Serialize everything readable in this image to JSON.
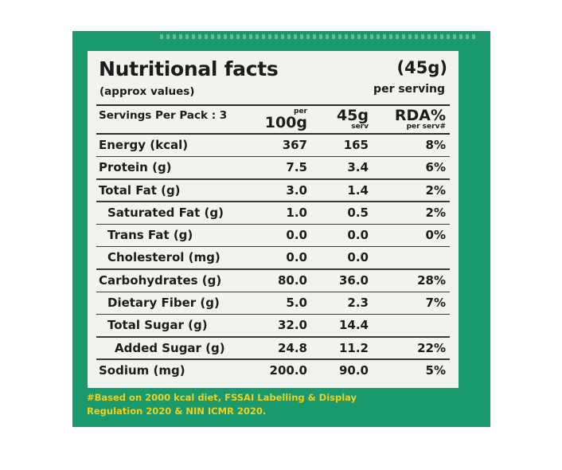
{
  "label": {
    "title": "Nutritional facts",
    "subtitle": "(approx values)",
    "serving_size": "(45g)",
    "serving_caption": "per serving",
    "servings_per_pack": "Servings Per Pack : 3",
    "headers": {
      "per100_small": "per",
      "per100_big": "100g",
      "per45_big": "45g",
      "per45_small": "serv",
      "rda_big": "RDA%",
      "rda_small": "per serv#"
    },
    "rows": [
      {
        "name": "Energy (kcal)",
        "indent": 0,
        "per100": "367",
        "per45": "165",
        "rda": "8%"
      },
      {
        "name": "Protein (g)",
        "indent": 0,
        "per100": "7.5",
        "per45": "3.4",
        "rda": "6%"
      },
      {
        "name": "Total Fat (g)",
        "indent": 0,
        "per100": "3.0",
        "per45": "1.4",
        "rda": "2%"
      },
      {
        "name": "Saturated Fat (g)",
        "indent": 1,
        "per100": "1.0",
        "per45": "0.5",
        "rda": "2%"
      },
      {
        "name": "Trans Fat (g)",
        "indent": 1,
        "per100": "0.0",
        "per45": "0.0",
        "rda": "0%"
      },
      {
        "name": "Cholesterol (mg)",
        "indent": 1,
        "per100": "0.0",
        "per45": "0.0",
        "rda": ""
      },
      {
        "name": "Carbohydrates (g)",
        "indent": 0,
        "per100": "80.0",
        "per45": "36.0",
        "rda": "28%"
      },
      {
        "name": "Dietary Fiber (g)",
        "indent": 1,
        "per100": "5.0",
        "per45": "2.3",
        "rda": "7%"
      },
      {
        "name": "Total Sugar (g)",
        "indent": 1,
        "per100": "32.0",
        "per45": "14.4",
        "rda": ""
      },
      {
        "name": "Added Sugar (g)",
        "indent": 2,
        "per100": "24.8",
        "per45": "11.2",
        "rda": "22%"
      },
      {
        "name": "Sodium (mg)",
        "indent": 0,
        "per100": "200.0",
        "per45": "90.0",
        "rda": "5%"
      }
    ]
  },
  "footnote": {
    "line1": "#Based on 2000 kcal diet, FSSAI Labelling & Display",
    "line2": "Regulation 2020 & NIN ICMR 2020."
  },
  "colors": {
    "panel_green": "#1a9a6c",
    "label_bg": "#f3f2ec",
    "footnote_yellow": "#f2cf1c"
  }
}
